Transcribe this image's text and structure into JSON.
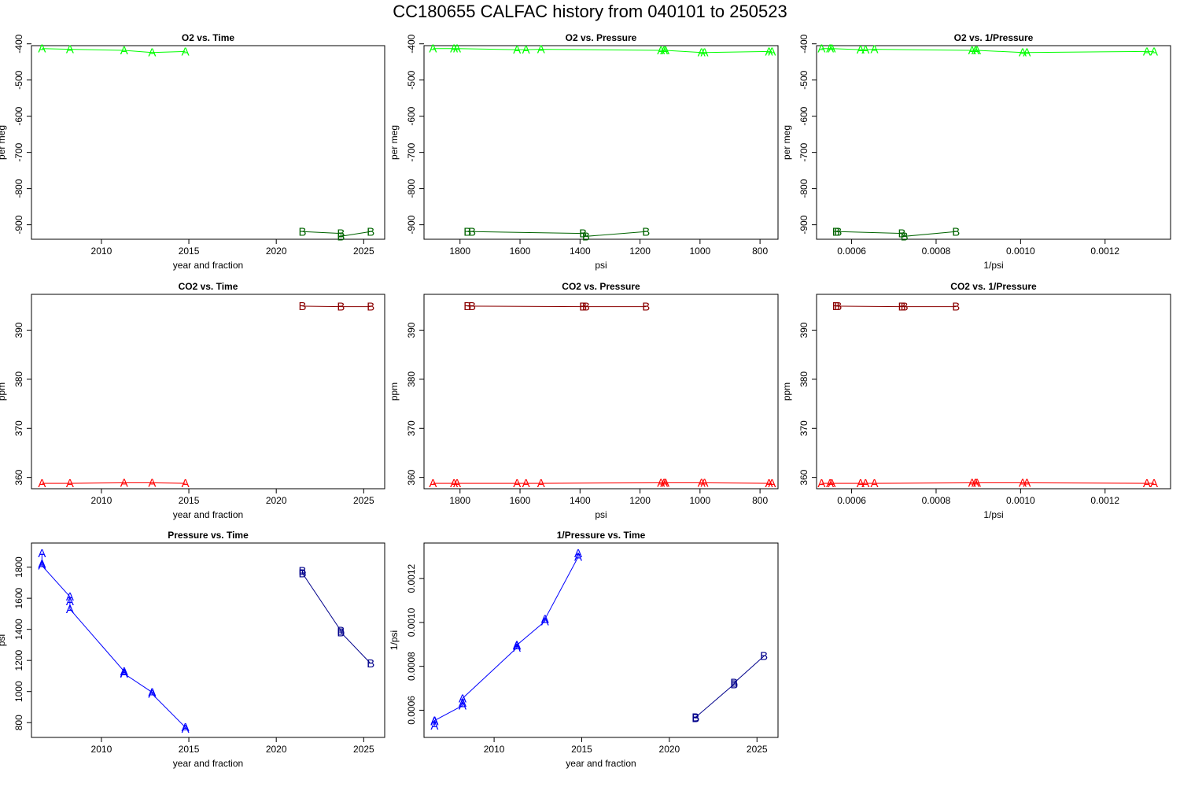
{
  "title": "CC180655   CALFAC history from  040101  to  250523",
  "colors": {
    "o2_A": "#00ff00",
    "o2_B": "#006400",
    "co2_A": "#ff0000",
    "co2_B": "#8b0000",
    "p_A": "#0000ff",
    "p_B": "#00008b",
    "frame": "#000000",
    "background": "#ffffff"
  },
  "chart_data": [
    {
      "id": "o2-time",
      "type": "line",
      "title": "O2 vs. Time",
      "xlabel": "year and fraction",
      "ylabel": "per meg",
      "xlim": [
        2006,
        2026.2
      ],
      "ylim": [
        -940,
        -405
      ],
      "xticks": [
        2010,
        2015,
        2020,
        2025
      ],
      "yticks": [
        -900,
        -800,
        -700,
        -600,
        -500,
        -400
      ],
      "xtick_labels": [
        "2010",
        "2015",
        "2020",
        "2025"
      ],
      "ytick_labels": [
        "-900",
        "-800",
        "-700",
        "-600",
        "-500",
        "-400"
      ],
      "ytick_rotate": true,
      "series": [
        {
          "name": "A",
          "color_key": "o2_A",
          "x": [
            2006.6,
            2008.2,
            2011.3,
            2012.9,
            2014.8
          ],
          "y": [
            -413,
            -415,
            -418,
            -424,
            -421
          ]
        },
        {
          "name": "B",
          "color_key": "o2_B",
          "x": [
            2021.5,
            2023.7,
            2023.7,
            2025.4
          ],
          "y": [
            -919,
            -924,
            -932,
            -919
          ]
        }
      ]
    },
    {
      "id": "o2-pressure",
      "type": "line",
      "title": "O2 vs. Pressure",
      "xlabel": "psi",
      "ylabel": "per meg",
      "xlim": [
        1920,
        740
      ],
      "ylim": [
        -940,
        -405
      ],
      "xticks": [
        1800,
        1600,
        1400,
        1200,
        1000,
        800
      ],
      "yticks": [
        -900,
        -800,
        -700,
        -600,
        -500,
        -400
      ],
      "xtick_labels": [
        "1800",
        "1600",
        "1400",
        "1200",
        "1000",
        "800"
      ],
      "ytick_labels": [
        "-900",
        "-800",
        "-700",
        "-600",
        "-500",
        "-400"
      ],
      "ytick_rotate": true,
      "series": [
        {
          "name": "A",
          "color_key": "o2_A",
          "x": [
            1890,
            1820,
            1810,
            1610,
            1580,
            1530,
            1130,
            1120,
            1115,
            995,
            985,
            770,
            760
          ],
          "y": [
            -413,
            -413,
            -413,
            -416,
            -416,
            -415,
            -418,
            -418,
            -418,
            -424,
            -424,
            -421,
            -421
          ]
        },
        {
          "name": "B",
          "color_key": "o2_B",
          "x": [
            1775,
            1760,
            1390,
            1380,
            1180
          ],
          "y": [
            -919,
            -919,
            -924,
            -932,
            -919
          ]
        }
      ]
    },
    {
      "id": "o2-inv-pressure",
      "type": "line",
      "title": "O2 vs. 1/Pressure",
      "xlabel": "1/psi",
      "ylabel": "per meg",
      "xlim": [
        0.000517,
        0.001355
      ],
      "ylim": [
        -940,
        -405
      ],
      "xticks": [
        0.0006,
        0.0008,
        0.001,
        0.0012
      ],
      "yticks": [
        -900,
        -800,
        -700,
        -600,
        -500,
        -400
      ],
      "xtick_labels": [
        "0.0006",
        "0.0008",
        "0.0010",
        "0.0012"
      ],
      "ytick_labels": [
        "-900",
        "-800",
        "-700",
        "-600",
        "-500",
        "-400"
      ],
      "ytick_rotate": true,
      "series": [
        {
          "name": "A",
          "color_key": "o2_A",
          "x": [
            0.000529,
            0.000549,
            0.000553,
            0.000621,
            0.000633,
            0.000654,
            0.000885,
            0.000893,
            0.000897,
            0.001005,
            0.001015,
            0.001299,
            0.001316
          ],
          "y": [
            -413,
            -413,
            -413,
            -416,
            -416,
            -415,
            -418,
            -418,
            -418,
            -424,
            -424,
            -421,
            -421
          ]
        },
        {
          "name": "B",
          "color_key": "o2_B",
          "x": [
            0.000563,
            0.000568,
            0.000719,
            0.000725,
            0.000847
          ],
          "y": [
            -919,
            -919,
            -924,
            -932,
            -919
          ]
        }
      ]
    },
    {
      "id": "co2-time",
      "type": "line",
      "title": "CO2 vs. Time",
      "xlabel": "year and fraction",
      "ylabel": "ppm",
      "xlim": [
        2006,
        2026.2
      ],
      "ylim": [
        357.7,
        397.3
      ],
      "xticks": [
        2010,
        2015,
        2020,
        2025
      ],
      "yticks": [
        360,
        370,
        380,
        390
      ],
      "xtick_labels": [
        "2010",
        "2015",
        "2020",
        "2025"
      ],
      "ytick_labels": [
        "360",
        "370",
        "380",
        "390"
      ],
      "ytick_rotate": true,
      "series": [
        {
          "name": "A",
          "color_key": "co2_A",
          "x": [
            2006.6,
            2008.2,
            2011.3,
            2012.9,
            2014.8
          ],
          "y": [
            358.8,
            358.8,
            358.9,
            358.9,
            358.8
          ]
        },
        {
          "name": "B",
          "color_key": "co2_B",
          "x": [
            2021.5,
            2023.7,
            2025.4
          ],
          "y": [
            394.9,
            394.8,
            394.8
          ]
        }
      ]
    },
    {
      "id": "co2-pressure",
      "type": "line",
      "title": "CO2 vs. Pressure",
      "xlabel": "psi",
      "ylabel": "ppm",
      "xlim": [
        1920,
        740
      ],
      "ylim": [
        357.7,
        397.3
      ],
      "xticks": [
        1800,
        1600,
        1400,
        1200,
        1000,
        800
      ],
      "yticks": [
        360,
        370,
        380,
        390
      ],
      "xtick_labels": [
        "1800",
        "1600",
        "1400",
        "1200",
        "1000",
        "800"
      ],
      "ytick_labels": [
        "360",
        "370",
        "380",
        "390"
      ],
      "ytick_rotate": true,
      "series": [
        {
          "name": "A",
          "color_key": "co2_A",
          "x": [
            1890,
            1820,
            1810,
            1610,
            1580,
            1530,
            1130,
            1120,
            1115,
            995,
            985,
            770,
            760
          ],
          "y": [
            358.8,
            358.8,
            358.8,
            358.8,
            358.8,
            358.8,
            358.9,
            358.9,
            358.9,
            358.9,
            358.9,
            358.8,
            358.8
          ]
        },
        {
          "name": "B",
          "color_key": "co2_B",
          "x": [
            1775,
            1760,
            1390,
            1380,
            1180
          ],
          "y": [
            394.9,
            394.9,
            394.8,
            394.8,
            394.8
          ]
        }
      ]
    },
    {
      "id": "co2-inv-pressure",
      "type": "line",
      "title": "CO2 vs. 1/Pressure",
      "xlabel": "1/psi",
      "ylabel": "ppm",
      "xlim": [
        0.000517,
        0.001355
      ],
      "ylim": [
        357.7,
        397.3
      ],
      "xticks": [
        0.0006,
        0.0008,
        0.001,
        0.0012
      ],
      "yticks": [
        360,
        370,
        380,
        390
      ],
      "xtick_labels": [
        "0.0006",
        "0.0008",
        "0.0010",
        "0.0012"
      ],
      "ytick_labels": [
        "360",
        "370",
        "380",
        "390"
      ],
      "ytick_rotate": true,
      "series": [
        {
          "name": "A",
          "color_key": "co2_A",
          "x": [
            0.000529,
            0.000549,
            0.000553,
            0.000621,
            0.000633,
            0.000654,
            0.000885,
            0.000893,
            0.000897,
            0.001005,
            0.001015,
            0.001299,
            0.001316
          ],
          "y": [
            358.8,
            358.8,
            358.8,
            358.8,
            358.8,
            358.8,
            358.9,
            358.9,
            358.9,
            358.9,
            358.9,
            358.8,
            358.8
          ]
        },
        {
          "name": "B",
          "color_key": "co2_B",
          "x": [
            0.000563,
            0.000568,
            0.000719,
            0.000725,
            0.000847
          ],
          "y": [
            394.9,
            394.9,
            394.8,
            394.8,
            394.8
          ]
        }
      ]
    },
    {
      "id": "pressure-time",
      "type": "line",
      "title": "Pressure vs. Time",
      "xlabel": "year and fraction",
      "ylabel": "psi",
      "xlim": [
        2006,
        2026.2
      ],
      "ylim": [
        705,
        1955
      ],
      "xticks": [
        2010,
        2015,
        2020,
        2025
      ],
      "yticks": [
        800,
        1000,
        1200,
        1400,
        1600,
        1800
      ],
      "xtick_labels": [
        "2010",
        "2015",
        "2020",
        "2025"
      ],
      "ytick_labels": [
        "800",
        "1000",
        "1200",
        "1400",
        "1600",
        "1800"
      ],
      "ytick_rotate": true,
      "series": [
        {
          "name": "A",
          "color_key": "p_A",
          "x": [
            2006.6,
            2006.6,
            2006.6,
            2008.2,
            2008.2,
            2008.2,
            2011.3,
            2011.3,
            2011.3,
            2012.9,
            2012.9,
            2014.8,
            2014.8
          ],
          "y": [
            1890,
            1820,
            1810,
            1610,
            1580,
            1530,
            1130,
            1120,
            1115,
            995,
            985,
            770,
            760
          ]
        },
        {
          "name": "B",
          "color_key": "p_B",
          "x": [
            2021.5,
            2021.5,
            2023.7,
            2023.7,
            2025.4
          ],
          "y": [
            1775,
            1760,
            1390,
            1380,
            1180
          ]
        }
      ]
    },
    {
      "id": "inv-pressure-time",
      "type": "line",
      "title": "1/Pressure vs. Time",
      "xlabel": "year and fraction",
      "ylabel": "1/psi",
      "xlim": [
        2006,
        2026.2
      ],
      "ylim": [
        0.000476,
        0.001362
      ],
      "xticks": [
        2010,
        2015,
        2020,
        2025
      ],
      "yticks": [
        0.0006,
        0.0008,
        0.001,
        0.0012
      ],
      "xtick_labels": [
        "2010",
        "2015",
        "2020",
        "2025"
      ],
      "ytick_labels": [
        "0.0006",
        "0.0008",
        "0.0010",
        "0.0012"
      ],
      "ytick_rotate": true,
      "series": [
        {
          "name": "A",
          "color_key": "p_A",
          "x": [
            2006.6,
            2006.6,
            2006.6,
            2008.2,
            2008.2,
            2008.2,
            2011.3,
            2011.3,
            2011.3,
            2012.9,
            2012.9,
            2014.8,
            2014.8
          ],
          "y": [
            0.000529,
            0.000549,
            0.000553,
            0.000621,
            0.000633,
            0.000654,
            0.000885,
            0.000893,
            0.000897,
            0.001005,
            0.001015,
            0.001299,
            0.001316
          ]
        },
        {
          "name": "B",
          "color_key": "p_B",
          "x": [
            2021.5,
            2021.5,
            2023.7,
            2023.7,
            2025.4
          ],
          "y": [
            0.000563,
            0.000568,
            0.000719,
            0.000725,
            0.000847
          ]
        }
      ]
    }
  ]
}
